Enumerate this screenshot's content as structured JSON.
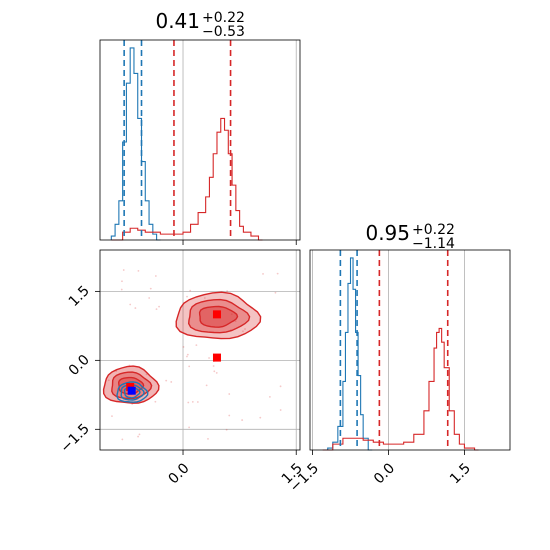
{
  "chart_data": {
    "type": "corner",
    "colors": {
      "blue": "#1f77b4",
      "red": "#d62728",
      "grid": "#b0b0b0"
    },
    "axis": {
      "x_range": [
        -1.1,
        1.55
      ],
      "y_range": [
        -1.95,
        2.4
      ],
      "x1_range": [
        -1.55,
        2.4
      ],
      "x_ticks": [
        0.0,
        1.5
      ],
      "x_tick_labels": [
        "0.0",
        "1.5"
      ],
      "y_ticks": [
        -1.5,
        0.0,
        1.5
      ],
      "y_tick_labels": [
        "−1.5",
        "0.0",
        "1.5"
      ],
      "x1_ticks": [
        -1.5,
        0.0,
        1.5
      ],
      "x1_tick_labels": [
        "−1.5",
        "0.0",
        "1.5"
      ]
    },
    "panels": [
      {
        "id": "marginal-x0",
        "title_value": "0.41",
        "title_plus": "+0.22",
        "title_minus": "−0.53",
        "blue_quantiles": [
          -0.78,
          -0.55
        ],
        "red_quantiles": [
          -0.12,
          0.63
        ],
        "blue_hist": {
          "x": [
            -0.95,
            -0.9,
            -0.85,
            -0.8,
            -0.75,
            -0.7,
            -0.65,
            -0.6,
            -0.55,
            -0.5,
            -0.45,
            -0.4,
            -0.35
          ],
          "y": [
            0.02,
            0.08,
            0.2,
            0.5,
            0.8,
            0.98,
            0.85,
            0.62,
            0.4,
            0.2,
            0.08,
            0.03,
            0.0
          ]
        },
        "red_hist": {
          "x": [
            -0.95,
            -0.8,
            -0.7,
            -0.6,
            -0.5,
            -0.3,
            -0.1,
            0.0,
            0.1,
            0.2,
            0.3,
            0.35,
            0.4,
            0.45,
            0.5,
            0.55,
            0.6,
            0.65,
            0.7,
            0.75,
            0.8,
            0.9,
            1.0
          ],
          "y": [
            0.0,
            0.04,
            0.06,
            0.05,
            0.04,
            0.03,
            0.03,
            0.04,
            0.08,
            0.14,
            0.22,
            0.32,
            0.44,
            0.55,
            0.62,
            0.56,
            0.44,
            0.28,
            0.15,
            0.07,
            0.04,
            0.02,
            0.0
          ]
        }
      },
      {
        "id": "marginal-x1",
        "title_value": "0.95",
        "title_plus": "+0.22",
        "title_minus": "−1.14",
        "blue_quantiles": [
          -0.95,
          -0.62
        ],
        "red_quantiles": [
          -0.18,
          1.17
        ],
        "blue_hist": {
          "x": [
            -1.2,
            -1.1,
            -1.0,
            -0.9,
            -0.85,
            -0.8,
            -0.75,
            -0.7,
            -0.65,
            -0.6,
            -0.55,
            -0.5,
            -0.4
          ],
          "y": [
            0.01,
            0.04,
            0.12,
            0.35,
            0.6,
            0.85,
            0.98,
            0.82,
            0.6,
            0.38,
            0.18,
            0.06,
            0.0
          ]
        },
        "red_hist": {
          "x": [
            -1.3,
            -1.1,
            -0.9,
            -0.7,
            -0.5,
            -0.3,
            -0.1,
            0.1,
            0.3,
            0.5,
            0.7,
            0.8,
            0.9,
            0.95,
            1.0,
            1.05,
            1.1,
            1.2,
            1.3,
            1.4,
            1.5,
            1.7
          ],
          "y": [
            0.0,
            0.03,
            0.06,
            0.06,
            0.05,
            0.04,
            0.03,
            0.03,
            0.04,
            0.08,
            0.2,
            0.35,
            0.52,
            0.6,
            0.62,
            0.55,
            0.42,
            0.2,
            0.08,
            0.03,
            0.01,
            0.0
          ]
        }
      }
    ],
    "joint": {
      "blue_cluster": {
        "center": [
          -0.68,
          -0.7
        ],
        "rx": 0.2,
        "ry": 0.22
      },
      "red_cluster_low": {
        "center": [
          -0.7,
          -0.55
        ],
        "rx": 0.36,
        "ry": 0.4
      },
      "red_cluster_high": {
        "center": [
          0.45,
          0.95
        ],
        "rx": 0.55,
        "ry": 0.5
      },
      "markers": [
        {
          "color": "red",
          "x": -0.7,
          "y": -0.58
        },
        {
          "color": "blue",
          "x": -0.68,
          "y": -0.66
        },
        {
          "color": "red",
          "x": 0.45,
          "y": 1.0
        },
        {
          "color": "red",
          "x": 0.45,
          "y": 0.06
        }
      ]
    }
  }
}
